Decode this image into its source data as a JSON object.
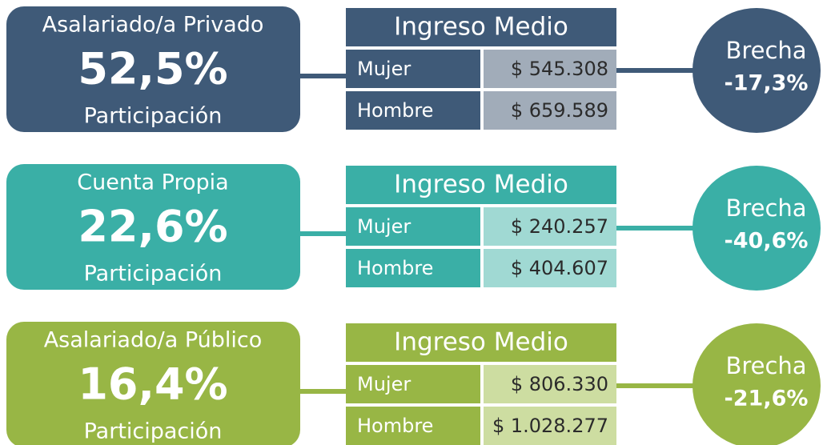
{
  "rows": [
    {
      "category": "Asalariado/a Privado",
      "share": "52,5%",
      "share_label": "Participación",
      "income_title": "Ingreso Medio",
      "women_label": "Mujer",
      "women": "$ 545.308",
      "men_label": "Hombre",
      "men": "$ 659.589",
      "gap_label": "Brecha",
      "gap": "-17,3%",
      "color": "#3f5a78",
      "light_color": "#a1acb9"
    },
    {
      "category": "Cuenta Propia",
      "share": "22,6%",
      "share_label": "Participación",
      "income_title": "Ingreso Medio",
      "women_label": "Mujer",
      "women": "$ 240.257",
      "men_label": "Hombre",
      "men": "$ 404.607",
      "gap_label": "Brecha",
      "gap": "-40,6%",
      "color": "#3aafa6",
      "light_color": "#a0d9d3"
    },
    {
      "category": "Asalariado/a Público",
      "share": "16,4%",
      "share_label": "Participación",
      "income_title": "Ingreso Medio",
      "women_label": "Mujer",
      "women": "$ 806.330",
      "men_label": "Hombre",
      "men": "$ 1.028.277",
      "gap_label": "Brecha",
      "gap": "-21,6%",
      "color": "#98b645",
      "light_color": "#cddda1"
    }
  ]
}
